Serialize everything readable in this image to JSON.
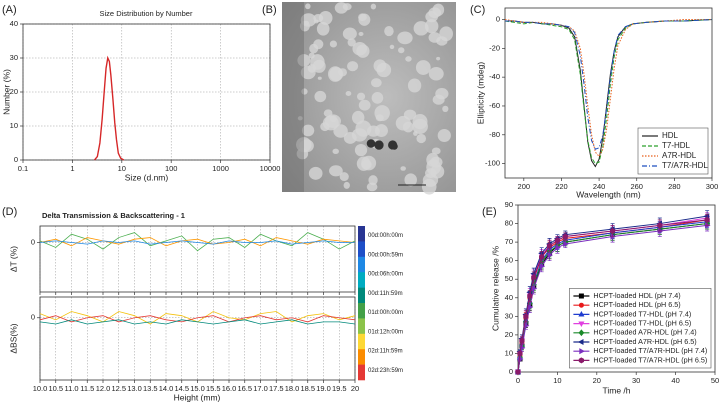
{
  "chart_data": [
    {
      "type": "line",
      "label": "(A)",
      "title": "Size Distribution by Number",
      "xlabel": "Size (d.nm)",
      "ylabel": "Number (%)",
      "xscale": "log",
      "xlim": [
        0.1,
        10000
      ],
      "xticks": [
        0.1,
        1,
        10,
        100,
        1000,
        10000
      ],
      "ylim": [
        0,
        40
      ],
      "yticks": [
        0,
        10,
        20,
        30,
        40
      ],
      "grid": true,
      "series": [
        {
          "color": "#d62728",
          "x": [
            2.8,
            3.2,
            3.6,
            4.0,
            4.4,
            4.8,
            5.2,
            5.6,
            6.0,
            6.6,
            7.2,
            7.8,
            8.5,
            9.5,
            11
          ],
          "values": [
            0,
            1,
            5,
            12,
            20,
            27,
            30,
            29,
            25,
            18,
            11,
            6,
            2,
            0.5,
            0
          ]
        }
      ]
    },
    {
      "type": "image",
      "label": "(B)"
    },
    {
      "type": "line",
      "label": "(C)",
      "xlabel": "Wavelength (nm)",
      "ylabel": "Ellipticity (mdeg)",
      "xlim": [
        190,
        300
      ],
      "xticks": [
        200,
        220,
        240,
        260,
        280,
        300
      ],
      "ylim": [
        -110,
        8
      ],
      "yticks": [
        -100,
        -80,
        -60,
        -40,
        -20,
        0
      ],
      "grid": false,
      "legend": "lower right",
      "x": [
        190,
        195,
        200,
        205,
        210,
        215,
        220,
        224,
        227,
        230,
        232,
        234,
        236,
        238,
        240,
        242,
        244,
        246,
        248,
        250,
        254,
        258,
        265,
        275,
        285,
        300
      ],
      "series": [
        {
          "name": "HDL",
          "color": "#222222",
          "dash": "solid",
          "values": [
            -1,
            -1,
            -2,
            -2,
            -3,
            -3,
            -4,
            -6,
            -12,
            -35,
            -60,
            -85,
            -98,
            -102,
            -97,
            -82,
            -60,
            -38,
            -22,
            -12,
            -5,
            -3,
            -2,
            -1,
            -1,
            0
          ]
        },
        {
          "name": "T7-HDL",
          "color": "#2ca02c",
          "dash": "dashed",
          "values": [
            -1,
            -2,
            -3,
            -2,
            -3,
            -4,
            -5,
            -7,
            -14,
            -38,
            -62,
            -84,
            -96,
            -100,
            -99,
            -88,
            -68,
            -45,
            -26,
            -14,
            -6,
            -3,
            -2,
            -1,
            -1,
            0
          ]
        },
        {
          "name": "A7R-HDL",
          "color": "#e8601c",
          "dash": "dotted",
          "values": [
            0,
            -1,
            -2,
            -2,
            -2,
            -3,
            -4,
            -5,
            -8,
            -20,
            -38,
            -60,
            -80,
            -92,
            -95,
            -90,
            -76,
            -55,
            -34,
            -18,
            -7,
            -3,
            -2,
            -1,
            0,
            0
          ]
        },
        {
          "name": "T7/A7R-HDL",
          "color": "#1f4fbf",
          "dash": "dashdot",
          "values": [
            -1,
            -1,
            -2,
            -2,
            -3,
            -3,
            -4,
            -5,
            -9,
            -25,
            -45,
            -68,
            -84,
            -90,
            -89,
            -80,
            -62,
            -40,
            -22,
            -11,
            -5,
            -3,
            -2,
            -1,
            -1,
            0
          ]
        }
      ]
    },
    {
      "type": "line",
      "label": "(D)",
      "title": "Delta Transmission & Backscattering - 1",
      "xlabel": "Height (mm)",
      "grid": true,
      "x": [
        10,
        10.5,
        11,
        11.5,
        12,
        12.5,
        13,
        13.5,
        14,
        14.5,
        15,
        15.5,
        16,
        16.5,
        17,
        17.5,
        18,
        18.5,
        19,
        19.5,
        20
      ],
      "xlim": [
        10,
        20
      ],
      "xticks": [
        {
          "value": 10,
          "label": "10.0"
        },
        10.5,
        {
          "value": 11,
          "label": "11.0"
        },
        11.5,
        {
          "value": 12,
          "label": "12.0"
        },
        12.5,
        {
          "value": 13,
          "label": "13.0"
        },
        13.5,
        {
          "value": 14,
          "label": "14.0"
        },
        14.5,
        {
          "value": 15,
          "label": "15.0"
        },
        15.5,
        {
          "value": 16,
          "label": "16.0"
        },
        16.5,
        {
          "value": 17,
          "label": "17.0"
        },
        17.5,
        {
          "value": 18,
          "label": "18.0"
        },
        18.5,
        {
          "value": 19,
          "label": "19.0"
        },
        19.5,
        20
      ],
      "panels": [
        {
          "ylabel": "ΔT (%)",
          "ylim": [
            -3,
            1
          ],
          "yticks": [
            0
          ],
          "series": [
            {
              "color": "#4caf50",
              "values": [
                0.1,
                -0.3,
                0.5,
                0.2,
                -0.4,
                0.3,
                0.6,
                -0.2,
                0.1,
                0.4,
                -0.5,
                0.2,
                0.3,
                -0.3,
                0.5,
                0.1,
                -0.2,
                0.6,
                0.2,
                -0.4,
                0.1
              ]
            },
            {
              "color": "#ff9800",
              "values": [
                0,
                0.2,
                -0.2,
                0.3,
                0.1,
                -0.1,
                0.2,
                0.3,
                -0.2,
                0.1,
                0.2,
                -0.1,
                0,
                0.2,
                -0.2,
                0.3,
                0.1,
                -0.1,
                0.2,
                0.1,
                0
              ]
            },
            {
              "color": "#1e88e5",
              "values": [
                0,
                0.1,
                0,
                -0.1,
                0.1,
                0,
                0.1,
                -0.1,
                0,
                0.1,
                0,
                -0.1,
                0.1,
                0,
                0,
                0.1,
                -0.1,
                0,
                0.1,
                0,
                0
              ]
            }
          ]
        },
        {
          "ylabel": "ΔBS(%)",
          "ylim": [
            -3,
            1
          ],
          "yticks": [
            0
          ],
          "series": [
            {
              "color": "#f4c20d",
              "values": [
                0.2,
                -0.1,
                0.3,
                0.1,
                -0.2,
                0.3,
                0.1,
                -0.3,
                0.2,
                0.1,
                -0.2,
                0.3,
                0,
                -0.1,
                0.2,
                0.3,
                -0.2,
                0.1,
                0.2,
                -0.1,
                0.1
              ]
            },
            {
              "color": "#e53935",
              "values": [
                -0.1,
                0.1,
                -0.2,
                0,
                0.1,
                -0.2,
                0,
                0.1,
                -0.1,
                -0.2,
                0,
                0.1,
                -0.2,
                0,
                0.1,
                -0.1,
                0,
                -0.2,
                0.1,
                0,
                -0.1
              ]
            },
            {
              "color": "#00897b",
              "values": [
                -0.2,
                -0.3,
                -0.1,
                -0.3,
                -0.2,
                -0.1,
                -0.3,
                -0.2,
                -0.3,
                -0.1,
                -0.2,
                -0.3,
                -0.2,
                -0.1,
                -0.3,
                -0.2,
                -0.1,
                -0.3,
                -0.2,
                -0.2,
                -0.3
              ]
            }
          ]
        }
      ],
      "colorbar": {
        "colors": [
          "#283593",
          "#1e4fc8",
          "#1e88e5",
          "#00acc1",
          "#00897b",
          "#43a047",
          "#8bc34a",
          "#fdd835",
          "#fb8c00",
          "#e53935"
        ],
        "labels": [
          "00d:00h:00m",
          "00d:00h:59m",
          "00d:06h:00m",
          "00d:11h:59m",
          "01d:00h:00m",
          "01d:12h:00m",
          "02d:11h:59m",
          "02d:23h:59m"
        ]
      }
    },
    {
      "type": "line",
      "label": "(E)",
      "xlabel": "Time /h",
      "ylabel": "Cumulative  release /%",
      "xlim": [
        0,
        50
      ],
      "xticks": [
        0,
        10,
        20,
        30,
        40,
        50
      ],
      "ylim": [
        0,
        90
      ],
      "yticks": [
        0,
        10,
        20,
        30,
        40,
        50,
        60,
        70,
        80,
        90
      ],
      "grid": false,
      "legend": "lower right",
      "x": [
        0,
        0.5,
        1,
        2,
        3,
        4,
        6,
        8,
        10,
        12,
        24,
        36,
        48
      ],
      "series": [
        {
          "name": "HCPT-loaded HDL (pH 7.4)",
          "color": "#000000",
          "marker": "square",
          "values": [
            0,
            7,
            14,
            26,
            36,
            46,
            58,
            64,
            68,
            70,
            74,
            77,
            80
          ],
          "errors": [
            0,
            1,
            2,
            2,
            3,
            3,
            3,
            3,
            3,
            2,
            3,
            3,
            3
          ]
        },
        {
          "name": "HCPT-loaded HDL (pH 6.5)",
          "color": "#e8191b",
          "marker": "circle",
          "values": [
            0,
            9,
            16,
            29,
            40,
            50,
            62,
            67,
            70,
            72,
            75,
            78,
            82
          ],
          "errors": [
            0,
            1,
            2,
            3,
            3,
            3,
            3,
            3,
            2,
            2,
            3,
            3,
            3
          ]
        },
        {
          "name": "HCPT-loaded T7-HDL (pH 7.4)",
          "color": "#1f3ccf",
          "marker": "triangle-up",
          "values": [
            0,
            8,
            15,
            28,
            38,
            48,
            60,
            66,
            69,
            71,
            75,
            78,
            81
          ],
          "errors": [
            0,
            1,
            2,
            2,
            3,
            3,
            3,
            3,
            3,
            2,
            3,
            3,
            3
          ]
        },
        {
          "name": "HCPT-loaded T7-HDL (pH 6.5)",
          "color": "#e040e0",
          "marker": "triangle-down",
          "values": [
            0,
            10,
            17,
            30,
            42,
            52,
            63,
            68,
            71,
            73,
            76,
            79,
            83
          ],
          "errors": [
            0,
            1,
            2,
            3,
            3,
            3,
            3,
            3,
            2,
            2,
            3,
            3,
            3
          ]
        },
        {
          "name": "HCPT-loaded A7R-HDL (pH 7.4)",
          "color": "#1a8a2a",
          "marker": "diamond",
          "values": [
            0,
            8,
            14,
            27,
            37,
            47,
            59,
            65,
            68,
            70,
            74,
            77,
            80
          ],
          "errors": [
            0,
            1,
            2,
            2,
            3,
            3,
            3,
            3,
            3,
            2,
            3,
            3,
            3
          ]
        },
        {
          "name": "HCPT-loaded A7R-HDL (pH 6.5)",
          "color": "#1a2a8a",
          "marker": "triangle-left",
          "values": [
            0,
            11,
            18,
            31,
            43,
            53,
            64,
            69,
            72,
            74,
            77,
            80,
            84
          ],
          "errors": [
            0,
            1,
            2,
            3,
            3,
            3,
            3,
            3,
            2,
            2,
            3,
            3,
            3
          ]
        },
        {
          "name": "HCPT-loaded T7/A7R-HDL (pH 7.4)",
          "color": "#7b2fbf",
          "marker": "triangle-right",
          "values": [
            0,
            7,
            13,
            25,
            35,
            45,
            57,
            63,
            67,
            69,
            73,
            76,
            79
          ],
          "errors": [
            0,
            1,
            2,
            2,
            3,
            3,
            3,
            3,
            3,
            2,
            3,
            3,
            3
          ]
        },
        {
          "name": "HCPT-loaded T7/A7R-HDL (pH 6.5)",
          "color": "#8a1a6a",
          "marker": "hexagon",
          "values": [
            0,
            10,
            17,
            30,
            41,
            51,
            62,
            68,
            71,
            73,
            76,
            79,
            82
          ],
          "errors": [
            0,
            1,
            2,
            3,
            3,
            3,
            3,
            3,
            2,
            2,
            3,
            3,
            3
          ]
        }
      ]
    }
  ]
}
